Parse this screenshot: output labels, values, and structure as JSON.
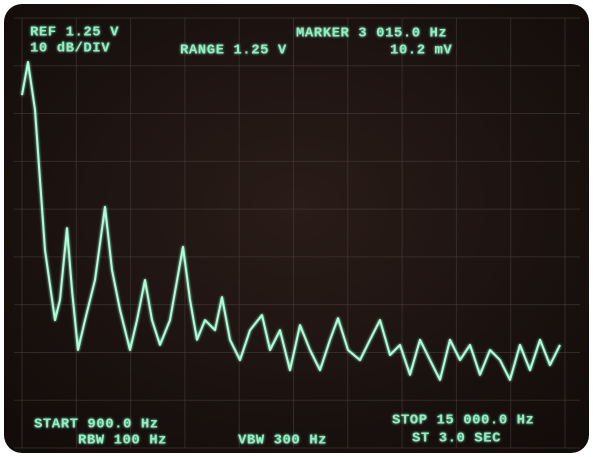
{
  "chart_data": {
    "type": "line",
    "annotations": [
      "REF 1.25 V",
      "10 dB/DIV",
      "RANGE 1.25 V",
      "MARKER 3 015.0 Hz",
      "10.2 mV",
      "START 900.0 Hz",
      "RBW 100 Hz",
      "VBW 300 Hz",
      "STOP 15 000.0 Hz",
      "ST 3.0 SEC"
    ],
    "xlim": [
      900,
      15000
    ],
    "ylim": [
      -80,
      0
    ],
    "grid": true,
    "series": [
      {
        "color": "#a8ffd8",
        "x": [
          900,
          1056,
          1238,
          1497,
          1757,
          1887,
          2069,
          2198,
          2354,
          2536,
          2796,
          3055,
          3237,
          3445,
          3705,
          3887,
          4094,
          4276,
          4484,
          4743,
          5081,
          5263,
          5445,
          5652,
          5912,
          6094,
          6302,
          6561,
          6821,
          7133,
          7340,
          7600,
          7860,
          8119,
          8379,
          8639,
          8898,
          9106,
          9366,
          9678,
          9937,
          10197,
          10457,
          10716,
          10976,
          11236,
          11495,
          11755,
          12015,
          12274,
          12534,
          12794,
          13053,
          13313,
          13573,
          13832,
          14092,
          14352,
          14611,
          14871
        ],
        "values": [
          -7.2,
          0,
          -10.4,
          -40.9,
          -56.1,
          -51.7,
          -36.1,
          -49.6,
          -62.6,
          -56.1,
          -47.4,
          -31.5,
          -45.2,
          -53.9,
          -62.6,
          -56.1,
          -47.4,
          -56.1,
          -61.5,
          -56.1,
          -40.2,
          -51.7,
          -60.4,
          -56.1,
          -58.3,
          -51.1,
          -60.4,
          -64.8,
          -58.3,
          -55,
          -62.6,
          -58.3,
          -67,
          -57.2,
          -62.6,
          -67,
          -60.4,
          -55.7,
          -62.6,
          -64.8,
          -60.4,
          -56.1,
          -63.7,
          -61.5,
          -68,
          -60.4,
          -64.8,
          -69.1,
          -60.4,
          -64.8,
          -61.5,
          -68,
          -62.6,
          -64.8,
          -69.1,
          -61.5,
          -67,
          -60.4,
          -65.9,
          -61.5
        ]
      }
    ]
  }
}
